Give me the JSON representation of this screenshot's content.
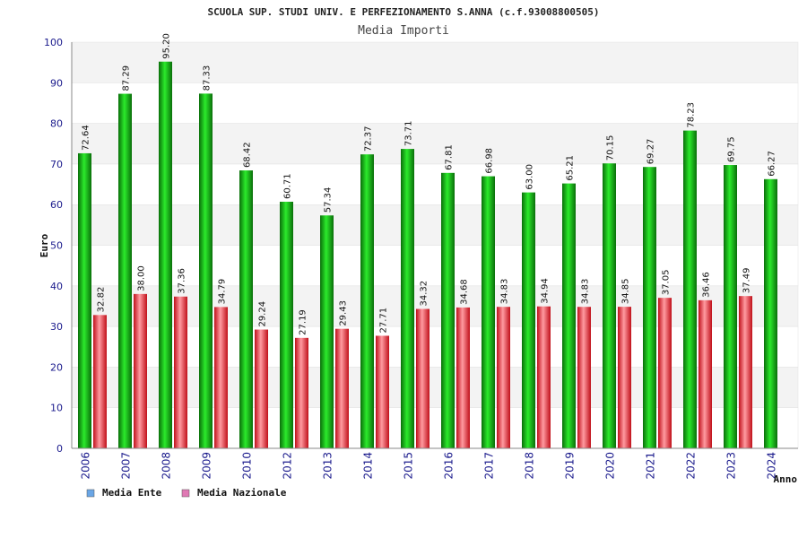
{
  "chart_data": {
    "type": "bar",
    "title": "SCUOLA SUP. STUDI UNIV. E PERFEZIONAMENTO S.ANNA (c.f.93008800505)",
    "subtitle": "Media Importi",
    "xlabel": "Anno",
    "ylabel": "Euro",
    "ylim": [
      0,
      100
    ],
    "yticks": [
      0,
      10,
      20,
      30,
      40,
      50,
      60,
      70,
      80,
      90,
      100
    ],
    "grid": "horizontal alternating bands",
    "legend_position": "bottom-left",
    "categories": [
      "2006",
      "2007",
      "2008",
      "2009",
      "2010",
      "2012",
      "2013",
      "2014",
      "2015",
      "2016",
      "2017",
      "2018",
      "2019",
      "2020",
      "2021",
      "2022",
      "2023",
      "2024"
    ],
    "series": [
      {
        "name": "Media Ente",
        "color": "#00b000",
        "legend_color": "#6aa6e6",
        "values": [
          72.64,
          87.29,
          95.2,
          87.33,
          68.42,
          60.71,
          57.34,
          72.37,
          73.71,
          67.81,
          66.98,
          63.0,
          65.21,
          70.15,
          69.27,
          78.23,
          69.75,
          66.27
        ],
        "labels": [
          "72.64",
          "87.29",
          "95.20",
          "87.33",
          "68.42",
          "60.71",
          "57.34",
          "72.37",
          "73.71",
          "67.81",
          "66.98",
          "63.00",
          "65.21",
          "70.15",
          "69.27",
          "78.23",
          "69.75",
          "66.27"
        ]
      },
      {
        "name": "Media Nazionale",
        "color": "#e8202a",
        "legend_color": "#e079b4",
        "values": [
          32.82,
          38.0,
          37.36,
          34.79,
          29.24,
          27.19,
          29.43,
          27.71,
          34.32,
          34.68,
          34.83,
          34.94,
          34.83,
          34.85,
          37.05,
          36.46,
          37.49,
          null
        ],
        "labels": [
          "32.82",
          "38.00",
          "37.36",
          "34.79",
          "29.24",
          "27.19",
          "29.43",
          "27.71",
          "34.32",
          "34.68",
          "34.83",
          "34.94",
          "34.83",
          "34.85",
          "37.05",
          "36.46",
          "37.49",
          ""
        ]
      }
    ]
  }
}
